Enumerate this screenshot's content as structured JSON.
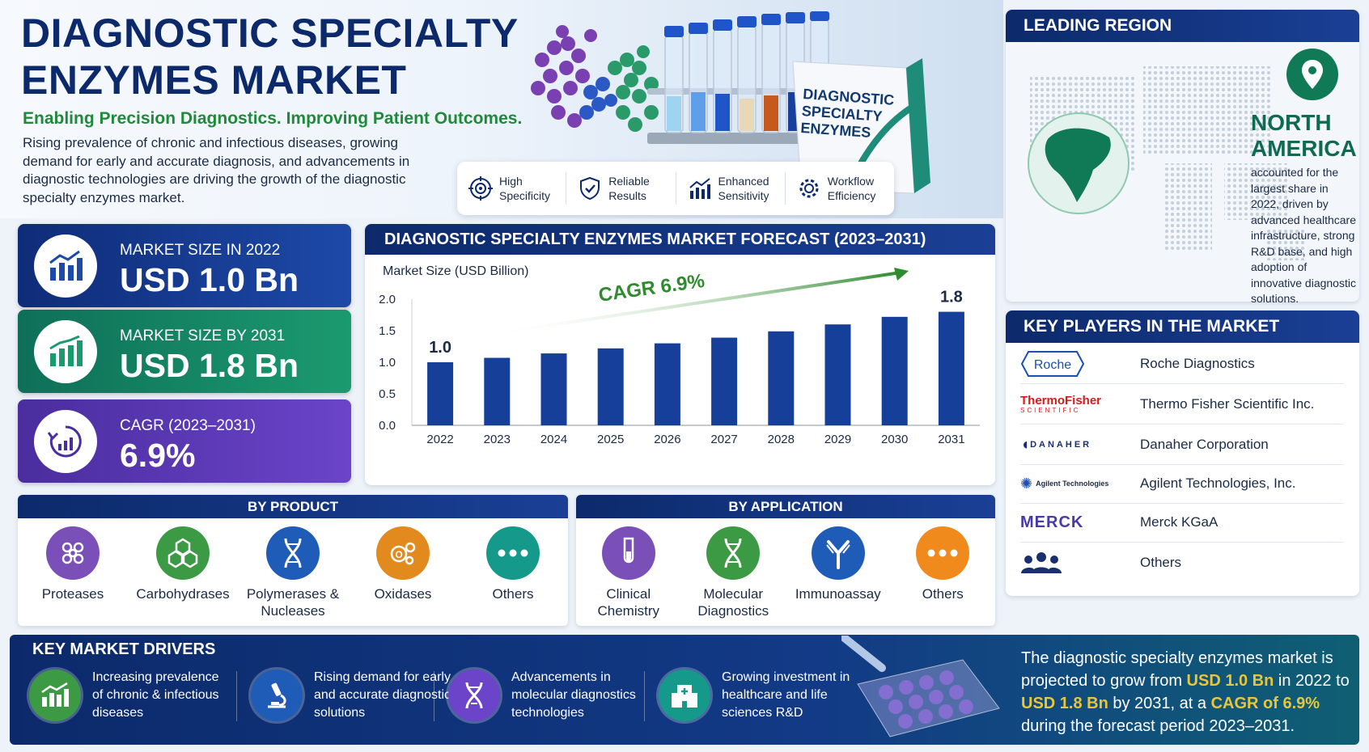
{
  "header": {
    "title_line1": "DIAGNOSTIC SPECIALTY",
    "title_line2": "ENZYMES MARKET",
    "tagline": "Enabling Precision Diagnostics. Improving Patient Outcomes.",
    "intro": "Rising prevalence of chronic and infectious diseases, growing demand for early and accurate diagnosis, and advancements in diagnostic technologies are driving the growth of the diagnostic specialty enzymes market."
  },
  "box_label": "DIAGNOSTIC\nSPECIALTY\nENZYMES",
  "features": [
    {
      "label": "High\nSpecificity",
      "icon": "target-icon"
    },
    {
      "label": "Reliable\nResults",
      "icon": "shield-check-icon"
    },
    {
      "label": "Enhanced\nSensitivity",
      "icon": "chart-up-icon"
    },
    {
      "label": "Workflow\nEfficiency",
      "icon": "gear-icon"
    }
  ],
  "stats": [
    {
      "label": "MARKET SIZE IN 2022",
      "value": "USD 1.0 Bn",
      "color": "#1d49a8"
    },
    {
      "label": "MARKET SIZE BY 2031",
      "value": "USD 1.8 Bn",
      "color": "#1b9a6f"
    },
    {
      "label": "CAGR (2023–2031)",
      "value": "6.9%",
      "color": "#6b44c9"
    }
  ],
  "chart_data": {
    "type": "bar",
    "title": "DIAGNOSTIC SPECIALTY ENZYMES MARKET FORECAST (2023–2031)",
    "ylabel": "Market Size (USD Billion)",
    "categories": [
      "2022",
      "2023",
      "2024",
      "2025",
      "2026",
      "2027",
      "2028",
      "2029",
      "2030",
      "2031"
    ],
    "values": [
      1.0,
      1.07,
      1.14,
      1.22,
      1.3,
      1.39,
      1.49,
      1.6,
      1.72,
      1.8
    ],
    "ylim": [
      0,
      2.0
    ],
    "yticks": [
      "0.0",
      "0.5",
      "1.0",
      "1.5",
      "2.0"
    ],
    "annotations": {
      "first": "1.0",
      "last": "1.8",
      "cagr": "CAGR 6.9%"
    },
    "bar_color": "#163f9a",
    "grid": false
  },
  "by_product": {
    "title": "BY PRODUCT",
    "items": [
      {
        "label": "Proteases",
        "color": "#7a4fb8"
      },
      {
        "label": "Carbohydrases",
        "color": "#3c9a45"
      },
      {
        "label": "Polymerases &\nNucleases",
        "color": "#1f5cb8"
      },
      {
        "label": "Oxidases",
        "color": "#e38a1e"
      },
      {
        "label": "Others",
        "color": "#14998a"
      }
    ]
  },
  "by_application": {
    "title": "BY APPLICATION",
    "items": [
      {
        "label": "Clinical\nChemistry",
        "color": "#7a4fb8"
      },
      {
        "label": "Molecular\nDiagnostics",
        "color": "#3c9a45"
      },
      {
        "label": "Immunoassay",
        "color": "#1f5cb8"
      },
      {
        "label": "Others",
        "color": "#f08a1c"
      }
    ]
  },
  "leading_region": {
    "title": "LEADING REGION",
    "name": "NORTH\nAMERICA",
    "description": "accounted for the largest share in 2022, driven by advanced healthcare infrastructure, strong R&D base, and high adoption of innovative diagnostic solutions."
  },
  "key_players": {
    "title": "KEY PLAYERS IN THE MARKET",
    "items": [
      {
        "name": "Roche Diagnostics",
        "logo": "Roche"
      },
      {
        "name": "Thermo Fisher Scientific Inc.",
        "logo": "ThermoFisher",
        "logo_sub": "SCIENTIFIC"
      },
      {
        "name": "Danaher Corporation",
        "logo": "DANAHER"
      },
      {
        "name": "Agilent Technologies, Inc.",
        "logo": "Agilent Technologies"
      },
      {
        "name": "Merck KGaA",
        "logo": "MERCK"
      },
      {
        "name": "Others",
        "logo": "people-icon"
      }
    ]
  },
  "drivers": {
    "title": "KEY MARKET DRIVERS",
    "items": [
      {
        "label": "Increasing prevalence of chronic & infectious diseases",
        "color": "#3c9a45"
      },
      {
        "label": "Rising demand for early and accurate diagnostic solutions",
        "color": "#1f5cb8"
      },
      {
        "label": "Advancements in molecular diagnostics technologies",
        "color": "#6b44c9"
      },
      {
        "label": "Growing investment in healthcare and life sciences R&D",
        "color": "#14998a"
      }
    ]
  },
  "summary": {
    "p1": "The diagnostic specialty enzymes market is projected to grow from ",
    "v1": "USD 1.0 Bn",
    "p2": " in 2022 to ",
    "v2": "USD 1.8 Bn",
    "p3": " by 2031, at a ",
    "v3": "CAGR of 6.9%",
    "p4": " during the forecast period 2023–2031."
  }
}
